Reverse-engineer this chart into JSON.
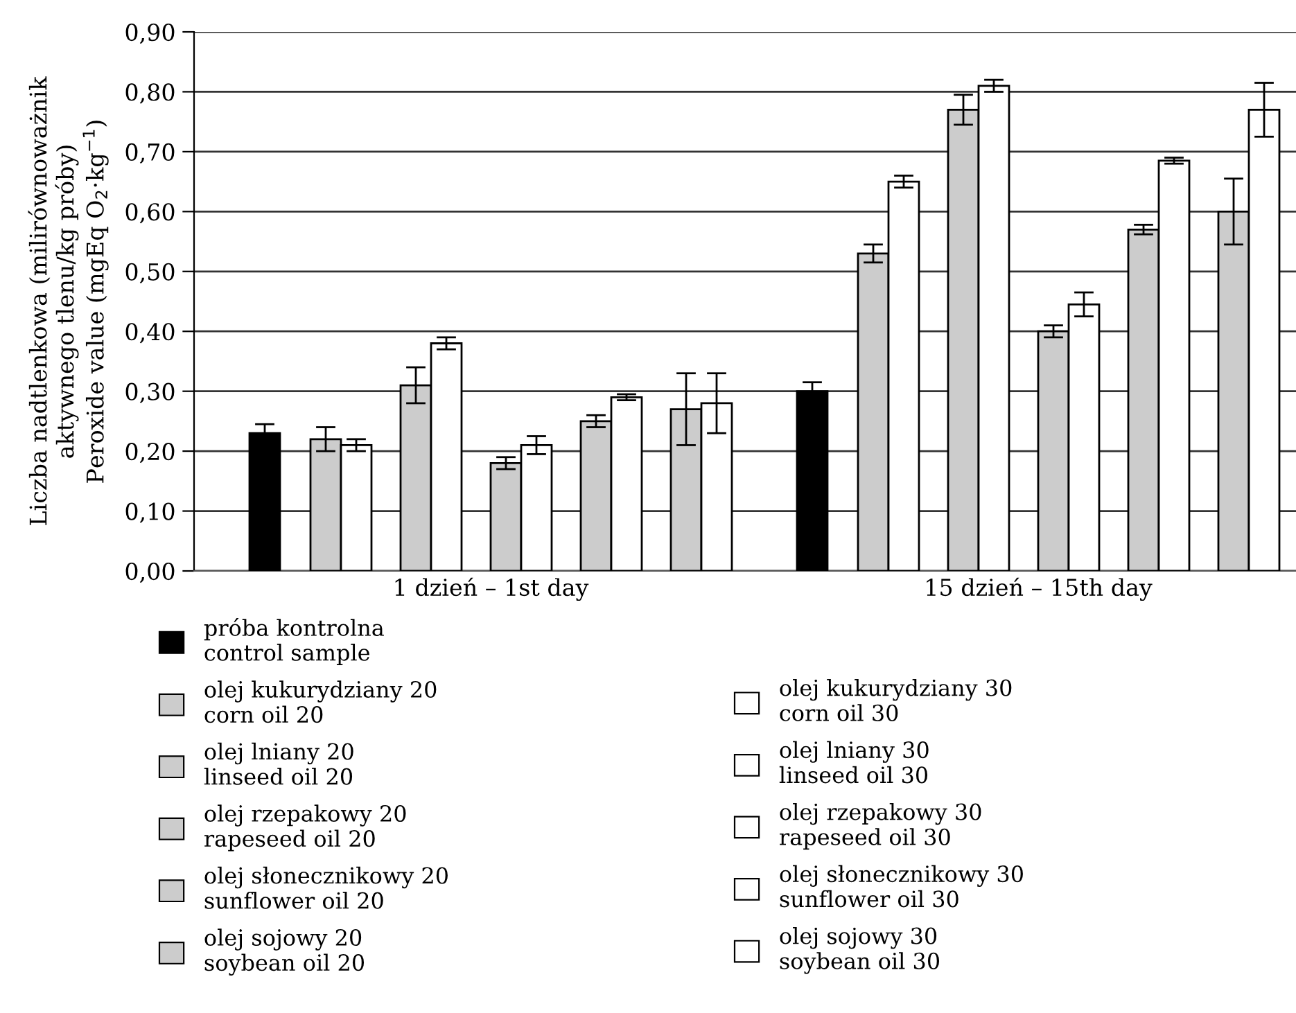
{
  "chart_data": {
    "type": "bar",
    "ylabel": "Liczba nadtlenkowa (milirównoważnik\naktywnego tlenu/kg próby)\nPeroxide value (mgEq O$_{2}$·kg$^{−1}$)",
    "categories": [
      "1 dzień – 1st day",
      "15 dzień – 15th day"
    ],
    "series": [
      {
        "name": "próba kontrolna\ncontrol sample",
        "color": "#000000",
        "values": [
          0.23,
          0.3
        ],
        "errors": [
          0.015,
          0.015
        ]
      },
      {
        "name": "olej kukurydziany 20\ncorn oil 20",
        "color": "#cccccc",
        "values": [
          0.22,
          0.53
        ],
        "errors": [
          0.02,
          0.015
        ]
      },
      {
        "name": "olej kukurydziany 30\ncorn oil 30",
        "color": "#ffffff",
        "values": [
          0.21,
          0.65
        ],
        "errors": [
          0.01,
          0.01
        ]
      },
      {
        "name": "olej lniany 20\nlinseed oil 20",
        "color": "#cccccc",
        "values": [
          0.31,
          0.77
        ],
        "errors": [
          0.03,
          0.025
        ]
      },
      {
        "name": "olej lniany 30\nlinseed oil 30",
        "color": "#ffffff",
        "values": [
          0.38,
          0.81
        ],
        "errors": [
          0.01,
          0.01
        ]
      },
      {
        "name": "olej rzepakowy 20\nrapeseed oil 20",
        "color": "#cccccc",
        "values": [
          0.18,
          0.4
        ],
        "errors": [
          0.01,
          0.01
        ]
      },
      {
        "name": "olej rzepakowy 30\nrapeseed oil 30",
        "color": "#ffffff",
        "values": [
          0.21,
          0.445
        ],
        "errors": [
          0.015,
          0.02
        ]
      },
      {
        "name": "olej słonecznikowy 20\nsunflower oil 20",
        "color": "#cccccc",
        "values": [
          0.25,
          0.57
        ],
        "errors": [
          0.01,
          0.008
        ]
      },
      {
        "name": "olej słonecznikowy 30\nsunflower oil 30",
        "color": "#ffffff",
        "values": [
          0.29,
          0.685
        ],
        "errors": [
          0.005,
          0.005
        ]
      },
      {
        "name": "olej sojowy 20\nsoybean oil 20",
        "color": "#cccccc",
        "values": [
          0.27,
          0.6
        ],
        "errors": [
          0.06,
          0.055
        ]
      },
      {
        "name": "olej sojowy 30\nsoybean oil 30",
        "color": "#ffffff",
        "values": [
          0.28,
          0.77
        ],
        "errors": [
          0.05,
          0.045
        ]
      }
    ],
    "ylim": [
      0,
      0.9
    ],
    "yticks": [
      {
        "value": 0,
        "label": "0,00"
      },
      {
        "value": 0.1,
        "label": "0,10"
      },
      {
        "value": 0.2,
        "label": "0,20"
      },
      {
        "value": 0.3,
        "label": "0,30"
      },
      {
        "value": 0.4,
        "label": "0,40"
      },
      {
        "value": 0.5,
        "label": "0,50"
      },
      {
        "value": 0.6,
        "label": "0,60"
      },
      {
        "value": 0.7,
        "label": "0,70"
      },
      {
        "value": 0.8,
        "label": "0,80"
      },
      {
        "value": 0.9,
        "label": "0,90"
      }
    ],
    "grid": "y",
    "legend": "bottom"
  }
}
